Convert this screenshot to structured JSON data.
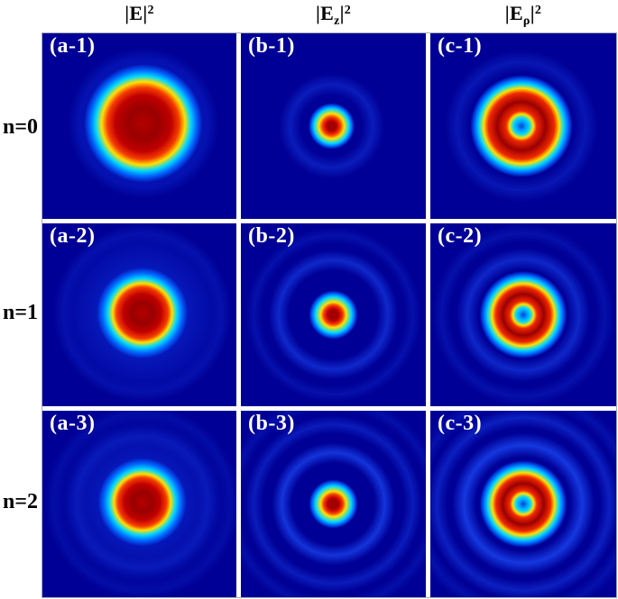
{
  "header": {
    "columns": [
      {
        "base": "|E|",
        "sub": "",
        "close": "",
        "sup": "2"
      },
      {
        "base": "|E",
        "sub": "z",
        "close": "|",
        "sup": "2"
      },
      {
        "base": "|E",
        "sub": "ρ",
        "close": "|",
        "sup": "2"
      }
    ],
    "row_labels": [
      "n=0",
      "n=1",
      "n=2"
    ]
  },
  "colors": {
    "panel_background": "#000096",
    "colormap": "jet",
    "panel_label_text": "#ffffff",
    "header_text": "#000000",
    "gap_color": "#ffffff"
  },
  "chart_data": {
    "type": "heatmap",
    "colormap": "jet",
    "note": "3x3 grid of simulated transverse intensity distributions; no axes, ticks or colorbar are shown",
    "grid": {
      "rows": [
        "n=0",
        "n=1",
        "n=2"
      ],
      "columns": [
        "|E|^2",
        "|E_z|^2",
        "|E_rho|^2"
      ]
    },
    "panels": [
      {
        "id": "a-1",
        "label": "(a-1)",
        "row": "n=0",
        "column": "|E|^2",
        "pattern": "spot",
        "description": "Solid circular focal spot, maximum intensity at centre, faint halo disc around it",
        "center": [
          0.52,
          0.485
        ],
        "radii": {
          "core": 0.145,
          "red": 0.185,
          "yellow": 0.215,
          "cyan": 0.245,
          "fade": 0.305
        },
        "glow": {
          "inner": 0.33,
          "outer": 0.39,
          "alpha": 0.32
        },
        "rings": []
      },
      {
        "id": "b-1",
        "label": "(b-1)",
        "row": "n=0",
        "column": "|E_z|^2",
        "pattern": "spot",
        "description": "Small bright central spot with one weak outer halo ring",
        "center": [
          0.49,
          0.5
        ],
        "radii": {
          "core": 0.03,
          "red": 0.049,
          "yellow": 0.068,
          "cyan": 0.094,
          "fade": 0.125
        },
        "rings": [
          {
            "r": 0.225,
            "w": 0.06,
            "a": 0.35
          }
        ]
      },
      {
        "id": "c-1",
        "label": "(c-1)",
        "row": "n=0",
        "column": "|E_rho|^2",
        "pattern": "ring",
        "description": "Bright annular doughnut ring with dark central hole and weak outer halo ring",
        "center": [
          0.49,
          0.5
        ],
        "radii": {
          "hole": 0.022,
          "inner_yellow": 0.064,
          "red_inner": 0.082,
          "red_outer": 0.178,
          "outer_yellow": 0.203,
          "outer_cyan": 0.228,
          "fade": 0.275
        },
        "rings": [
          {
            "r": 0.345,
            "w": 0.065,
            "a": 0.28
          }
        ]
      },
      {
        "id": "a-2",
        "label": "(a-2)",
        "row": "n=1",
        "column": "|E|^2",
        "pattern": "spot",
        "description": "Circular focal spot, smaller than n=0, with broad surrounding glow and faint outer ring",
        "center": [
          0.515,
          0.49
        ],
        "radii": {
          "core": 0.098,
          "red": 0.133,
          "yellow": 0.153,
          "cyan": 0.178,
          "fade": 0.235
        },
        "glow": {
          "inner": 0.19,
          "outer": 0.46,
          "alpha": 0.5
        },
        "rings": [
          {
            "r": 0.41,
            "w": 0.05,
            "a": 0.15
          }
        ]
      },
      {
        "id": "b-2",
        "label": "(b-2)",
        "row": "n=1",
        "column": "|E_z|^2",
        "pattern": "spot",
        "description": "Small central spot with one bright and one faint concentric outer ring",
        "center": [
          0.5,
          0.5
        ],
        "radii": {
          "core": 0.033,
          "red": 0.052,
          "yellow": 0.069,
          "cyan": 0.097,
          "fade": 0.132
        },
        "rings": [
          {
            "r": 0.295,
            "w": 0.055,
            "a": 0.5
          },
          {
            "r": 0.43,
            "w": 0.045,
            "a": 0.2
          }
        ]
      },
      {
        "id": "c-2",
        "label": "(c-2)",
        "row": "n=1",
        "column": "|E_rho|^2",
        "pattern": "ring",
        "description": "Annular ring with dark central hole plus one bright and one faint outer ring",
        "center": [
          0.5,
          0.5
        ],
        "radii": {
          "hole": 0.02,
          "inner_yellow": 0.057,
          "red_inner": 0.074,
          "red_outer": 0.147,
          "outer_yellow": 0.168,
          "outer_cyan": 0.192,
          "fade": 0.235
        },
        "rings": [
          {
            "r": 0.3,
            "w": 0.06,
            "a": 0.48
          },
          {
            "r": 0.44,
            "w": 0.05,
            "a": 0.2
          }
        ]
      },
      {
        "id": "a-3",
        "label": "(a-3)",
        "row": "n=2",
        "column": "|E|^2",
        "pattern": "spot",
        "description": "Circular focal spot with broad glow and two faint concentric outer rings",
        "center": [
          0.515,
          0.49
        ],
        "radii": {
          "core": 0.093,
          "red": 0.126,
          "yellow": 0.146,
          "cyan": 0.171,
          "fade": 0.228
        },
        "glow": {
          "inner": 0.18,
          "outer": 0.48,
          "alpha": 0.48
        },
        "rings": [
          {
            "r": 0.34,
            "w": 0.05,
            "a": 0.2
          },
          {
            "r": 0.46,
            "w": 0.045,
            "a": 0.14
          }
        ]
      },
      {
        "id": "b-3",
        "label": "(b-3)",
        "row": "n=2",
        "column": "|E_z|^2",
        "pattern": "spot",
        "description": "Small central spot with three concentric outer rings of decreasing brightness",
        "center": [
          0.5,
          0.5
        ],
        "radii": {
          "core": 0.033,
          "red": 0.052,
          "yellow": 0.069,
          "cyan": 0.097,
          "fade": 0.132
        },
        "rings": [
          {
            "r": 0.278,
            "w": 0.055,
            "a": 0.65
          },
          {
            "r": 0.43,
            "w": 0.05,
            "a": 0.35
          },
          {
            "r": 0.55,
            "w": 0.045,
            "a": 0.18
          }
        ]
      },
      {
        "id": "c-3",
        "label": "(c-3)",
        "row": "n=2",
        "column": "|E_rho|^2",
        "pattern": "ring",
        "description": "Annular ring with dark central hole plus three concentric outer rings of decreasing brightness",
        "center": [
          0.5,
          0.5
        ],
        "radii": {
          "hole": 0.02,
          "inner_yellow": 0.057,
          "red_inner": 0.074,
          "red_outer": 0.147,
          "outer_yellow": 0.168,
          "outer_cyan": 0.192,
          "fade": 0.235
        },
        "rings": [
          {
            "r": 0.318,
            "w": 0.065,
            "a": 0.7
          },
          {
            "r": 0.465,
            "w": 0.055,
            "a": 0.4
          },
          {
            "r": 0.58,
            "w": 0.05,
            "a": 0.2
          }
        ]
      }
    ]
  }
}
